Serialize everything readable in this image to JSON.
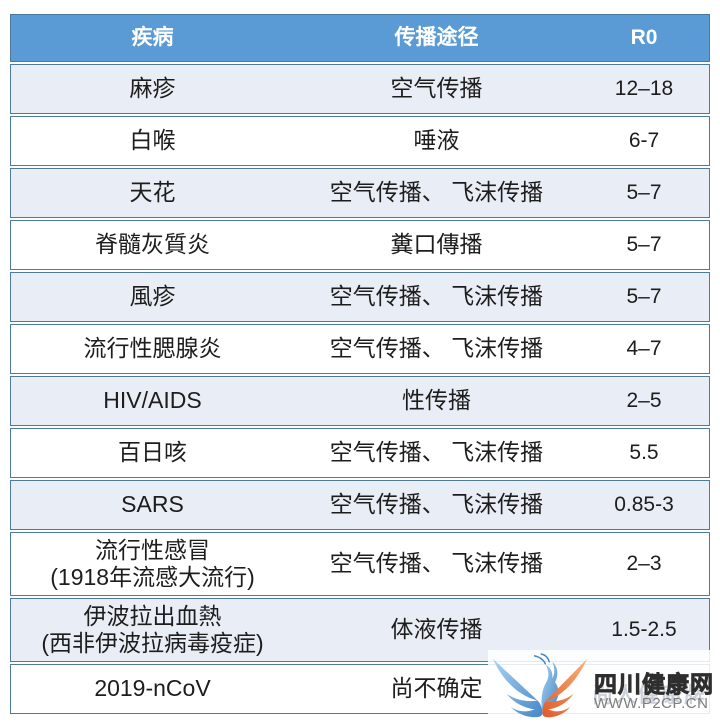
{
  "chart_data": {
    "type": "table",
    "columns": [
      "疾病",
      "传播途径",
      "R0"
    ],
    "rows": [
      {
        "disease": "麻疹",
        "route": "空气传播",
        "r0": "12–18"
      },
      {
        "disease": "白喉",
        "route": "唾液",
        "r0": "6-7"
      },
      {
        "disease": "天花",
        "route": "空气传播、 飞沫传播",
        "r0": "5–7"
      },
      {
        "disease": "脊髓灰質炎",
        "route": "糞口傳播",
        "r0": "5–7"
      },
      {
        "disease": "風疹",
        "route": "空气传播、 飞沫传播",
        "r0": "5–7"
      },
      {
        "disease": "流行性腮腺炎",
        "route": "空气传播、 飞沫传播",
        "r0": "4–7"
      },
      {
        "disease": "HIV/AIDS",
        "route": "性传播",
        "r0": "2–5"
      },
      {
        "disease": "百日咳",
        "route": "空气传播、 飞沫传播",
        "r0": "5.5"
      },
      {
        "disease": "SARS",
        "route": "空气传播、 飞沫传播",
        "r0": "0.85-3"
      },
      {
        "disease": "流行性感冒",
        "disease_sub": "(1918年流感大流行)",
        "route": "空气传播、 飞沫传播",
        "r0": "2–3"
      },
      {
        "disease": "伊波拉出血熱",
        "disease_sub": "(西非伊波拉病毒疫症)",
        "route": "体液传播",
        "r0": "1.5-2.5"
      },
      {
        "disease": "2019-nCoV",
        "route": "尚不确定",
        "r0": ""
      }
    ]
  },
  "watermark": {
    "site_name": "四川健康网",
    "site_url": "WWW.P2CP.CN",
    "faint_text": "尚人健康牌",
    "logo": "phoenix-logo"
  },
  "colors": {
    "header_bg": "#5b9bd5",
    "header_text": "#ffffff",
    "row_shade": "#e9edf5",
    "row_border": "#4e7aa0",
    "text": "#1d1d1d",
    "logo_blue": "#4687c7",
    "logo_orange": "#e25a2a"
  }
}
